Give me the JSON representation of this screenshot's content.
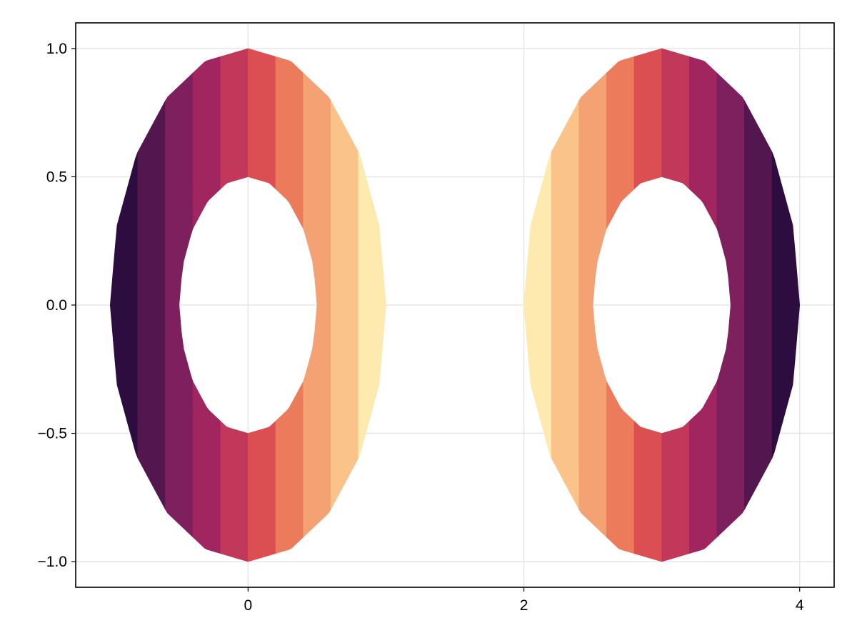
{
  "chart_data": {
    "type": "area",
    "title": "",
    "xlabel": "",
    "ylabel": "",
    "xlim": [
      -1.25,
      4.25
    ],
    "ylim": [
      -1.1,
      1.1
    ],
    "grid": true,
    "x_ticks": [
      {
        "value": 0,
        "label": "0"
      },
      {
        "value": 2,
        "label": "2"
      },
      {
        "value": 4,
        "label": "4"
      }
    ],
    "y_ticks": [
      {
        "value": 1.0,
        "label": "1.0"
      },
      {
        "value": 0.5,
        "label": "0.5"
      },
      {
        "value": 0.0,
        "label": "0.0"
      },
      {
        "value": -0.5,
        "label": "−0.5"
      },
      {
        "value": -1.0,
        "label": "−1.0"
      }
    ],
    "colormap": [
      "#2d0c3f",
      "#54164f",
      "#7e1f5e",
      "#a1255f",
      "#c1385b",
      "#db4e51",
      "#ec7b5b",
      "#f4a173",
      "#fac38a",
      "#feeaae"
    ],
    "rings": [
      {
        "center": [
          0,
          0
        ],
        "rx_outer": 1.0,
        "ry_outer": 1.0,
        "rx_inner": 0.5,
        "ry_inner": 0.5,
        "bands": 10,
        "color_direction": "dark-left"
      },
      {
        "center": [
          3,
          0
        ],
        "rx_outer": 1.0,
        "ry_outer": 1.0,
        "rx_inner": 0.5,
        "ry_inner": 0.5,
        "bands": 10,
        "color_direction": "dark-right"
      }
    ]
  }
}
